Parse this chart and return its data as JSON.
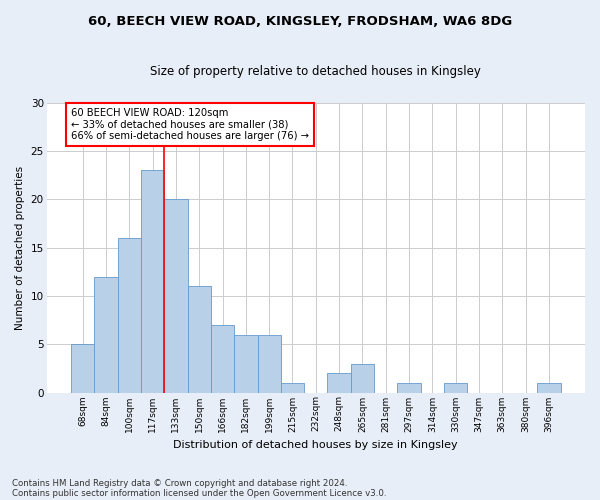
{
  "title1": "60, BEECH VIEW ROAD, KINGSLEY, FRODSHAM, WA6 8DG",
  "title2": "Size of property relative to detached houses in Kingsley",
  "xlabel": "Distribution of detached houses by size in Kingsley",
  "ylabel": "Number of detached properties",
  "bar_labels": [
    "68sqm",
    "84sqm",
    "100sqm",
    "117sqm",
    "133sqm",
    "150sqm",
    "166sqm",
    "182sqm",
    "199sqm",
    "215sqm",
    "232sqm",
    "248sqm",
    "265sqm",
    "281sqm",
    "297sqm",
    "314sqm",
    "330sqm",
    "347sqm",
    "363sqm",
    "380sqm",
    "396sqm"
  ],
  "bar_values": [
    5,
    12,
    16,
    23,
    20,
    11,
    7,
    6,
    6,
    1,
    0,
    2,
    3,
    0,
    1,
    0,
    1,
    0,
    0,
    0,
    1
  ],
  "bar_color": "#b8d0e8",
  "bar_edge_color": "#6699cc",
  "annotation_text": "60 BEECH VIEW ROAD: 120sqm\n← 33% of detached houses are smaller (38)\n66% of semi-detached houses are larger (76) →",
  "vline_index": 3,
  "vline_color": "red",
  "annotation_box_color": "white",
  "annotation_box_edge_color": "red",
  "ylim": [
    0,
    30
  ],
  "yticks": [
    0,
    5,
    10,
    15,
    20,
    25,
    30
  ],
  "footnote1": "Contains HM Land Registry data © Crown copyright and database right 2024.",
  "footnote2": "Contains public sector information licensed under the Open Government Licence v3.0.",
  "bg_color": "#e8eef7",
  "plot_bg_color": "#ffffff",
  "grid_color": "#cccccc"
}
